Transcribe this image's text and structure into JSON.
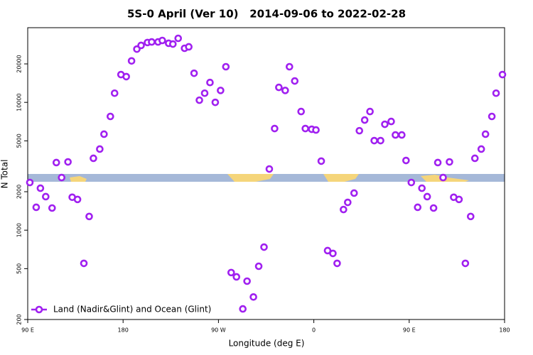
{
  "chart_data": {
    "type": "scatter",
    "title": "5S-0 April (Ver 10)   2014-09-06 to 2022-02-28",
    "xlabel": "Longitude (deg E)",
    "ylabel": "N Total",
    "x": [
      92,
      98,
      102,
      107,
      113,
      117,
      122,
      128,
      132,
      137,
      143,
      148,
      152,
      158,
      162,
      168,
      172,
      178,
      183,
      188,
      193,
      197,
      203,
      207,
      213,
      217,
      223,
      227,
      232,
      238,
      242,
      247,
      252,
      257,
      262,
      267,
      272,
      277,
      282,
      287,
      293,
      297,
      303,
      308,
      313,
      318,
      323,
      327,
      333,
      337,
      342,
      348,
      352,
      358,
      362,
      367,
      373,
      378,
      382,
      388,
      392,
      398,
      403,
      408,
      413,
      417,
      423,
      427,
      433,
      437,
      443,
      447,
      452,
      458,
      462,
      467,
      473,
      477,
      482,
      488,
      492,
      497,
      503,
      508,
      512,
      518,
      522,
      528,
      532,
      538
    ],
    "series": [
      {
        "name": "Land (Nadir&Glint) and Ocean (Glint)",
        "color": "#a020f0",
        "values": [
          2360,
          1510,
          2130,
          1830,
          1490,
          3380,
          2580,
          3420,
          1810,
          1740,
          550,
          1280,
          3650,
          4310,
          5640,
          7760,
          11800,
          16500,
          15900,
          21100,
          26100,
          27900,
          29400,
          29700,
          29700,
          30500,
          29000,
          28600,
          31700,
          26500,
          27200,
          16900,
          10400,
          11800,
          14300,
          10000,
          12400,
          19000,
          466,
          431,
          242,
          399,
          300,
          522,
          737,
          3010,
          6240,
          13100,
          12400,
          19000,
          14700,
          8480,
          6240,
          6160,
          6080,
          3470,
          692,
          658,
          550,
          1450,
          1650,
          1950,
          6000,
          7270,
          8480,
          5020,
          5020,
          6740,
          7090,
          5560,
          5560,
          3510,
          2360,
          1510,
          2130,
          1830,
          1490,
          3380,
          2580,
          3420,
          1810,
          1740,
          550,
          1280,
          3650,
          4310,
          5640,
          7760,
          11800,
          16500
        ]
      }
    ],
    "xlim": [
      90,
      540
    ],
    "xticks": [
      {
        "value": 90,
        "label": "90 E"
      },
      {
        "value": 180,
        "label": "180"
      },
      {
        "value": 270,
        "label": "90 W"
      },
      {
        "value": 360,
        "label": "0"
      },
      {
        "value": 450,
        "label": "90 E"
      },
      {
        "value": 540,
        "label": "180"
      }
    ],
    "ylim": [
      200,
      38400
    ],
    "yticks": [
      200,
      500,
      1000,
      2000,
      5000,
      10000,
      20000
    ],
    "ylog": true,
    "legend": "lower left"
  }
}
